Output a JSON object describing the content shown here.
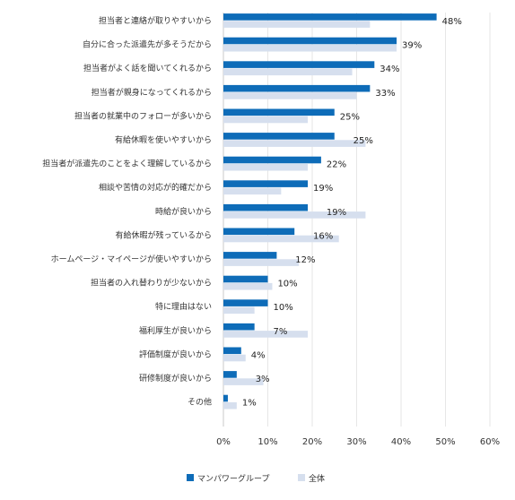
{
  "chart_data": {
    "type": "bar",
    "orientation": "horizontal",
    "categories": [
      "担当者と連絡が取りやすいから",
      "自分に合った派遣先が多そうだから",
      "担当者がよく話を聞いてくれるから",
      "担当者が親身になってくれるから",
      "担当者の就業中のフォローが多いから",
      "有給休暇を使いやすいから",
      "担当者が派遣先のことをよく理解しているから",
      "相談や苦情の対応が的確だから",
      "時給が良いから",
      "有給休暇が残っているから",
      "ホームページ・マイページが使いやすいから",
      "担当者の入れ替わりが少ないから",
      "特に理由はない",
      "福利厚生が良いから",
      "評価制度が良いから",
      "研修制度が良いから",
      "その他"
    ],
    "series": [
      {
        "name": "マンパワーグループ",
        "color": "#0e6cb8",
        "values": [
          48,
          39,
          34,
          33,
          25,
          25,
          22,
          19,
          19,
          16,
          12,
          10,
          10,
          7,
          4,
          3,
          1
        ]
      },
      {
        "name": "全体",
        "color": "#d6dfee",
        "values": [
          33,
          39,
          29,
          30,
          19,
          32,
          19,
          13,
          32,
          26,
          17,
          11,
          7,
          19,
          5,
          9,
          3
        ]
      }
    ],
    "value_labels": [
      "48%",
      "39%",
      "34%",
      "33%",
      "25%",
      "25%",
      "22%",
      "19%",
      "19%",
      "16%",
      "12%",
      "10%",
      "10%",
      "7%",
      "4%",
      "3%",
      "1%"
    ],
    "xlim": [
      0,
      60
    ],
    "xticks": [
      "0%",
      "10%",
      "20%",
      "30%",
      "40%",
      "50%",
      "60%"
    ],
    "title": "",
    "xlabel": "",
    "ylabel": "",
    "grid": true,
    "legend": "bottom"
  }
}
